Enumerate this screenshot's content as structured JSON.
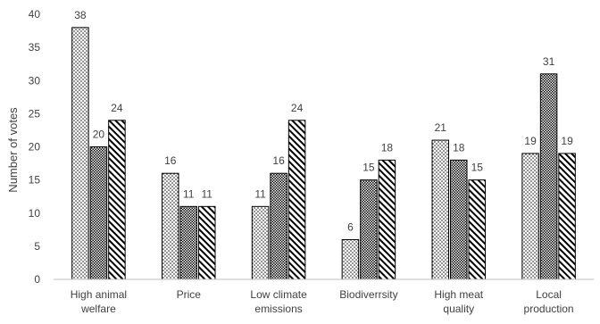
{
  "chart_data": {
    "type": "bar",
    "title": "",
    "xlabel": "",
    "ylabel": "Number of votes",
    "ylim": [
      0,
      40
    ],
    "yticks": [
      0,
      5,
      10,
      15,
      20,
      25,
      30,
      35,
      40
    ],
    "grid": false,
    "legend": "none",
    "categories": [
      [
        "High animal",
        "welfare"
      ],
      [
        "Price"
      ],
      [
        "Low climate",
        "emissions"
      ],
      [
        "Biodiverrsity"
      ],
      [
        "High meat",
        "quality"
      ],
      [
        "Local",
        "production"
      ]
    ],
    "series": [
      {
        "pattern": "dots",
        "values": [
          38,
          16,
          11,
          6,
          21,
          19
        ]
      },
      {
        "pattern": "crosshatch",
        "values": [
          20,
          11,
          16,
          15,
          18,
          31
        ]
      },
      {
        "pattern": "diagonal",
        "values": [
          24,
          11,
          24,
          18,
          15,
          19
        ]
      }
    ],
    "colors": {
      "bar_stroke": "#000000",
      "text": "#404040",
      "axis": "#bfbfbf",
      "fill": "#ffffff"
    }
  }
}
